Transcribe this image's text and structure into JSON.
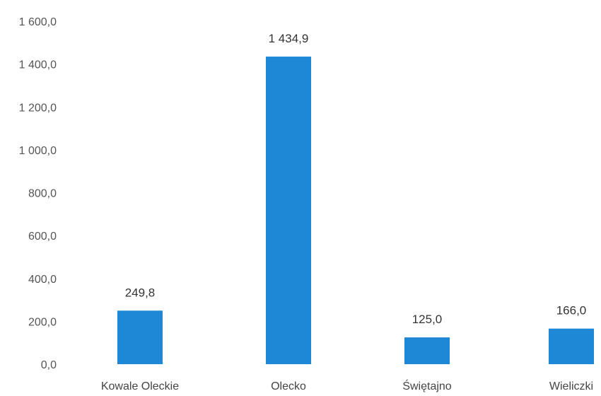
{
  "chart_data": {
    "type": "bar",
    "title": "",
    "xlabel": "",
    "ylabel": "",
    "categories": [
      "Kowale Oleckie",
      "Olecko",
      "Świętajno",
      "Wieliczki"
    ],
    "values": [
      249.8,
      1434.9,
      125.0,
      166.0
    ],
    "value_labels": [
      "249,8",
      "1 434,9",
      "125,0",
      "166,0"
    ],
    "ylim": [
      0,
      1600
    ],
    "yticks": [
      0,
      200,
      400,
      600,
      800,
      1000,
      1200,
      1400,
      1600
    ],
    "ytick_labels": [
      "0,0",
      "200,0",
      "400,0",
      "600,0",
      "800,0",
      "1 000,0",
      "1 200,0",
      "1 400,0",
      "1 600,0"
    ],
    "grid": false,
    "legend": "none",
    "bar_color": "#1f88d6"
  }
}
